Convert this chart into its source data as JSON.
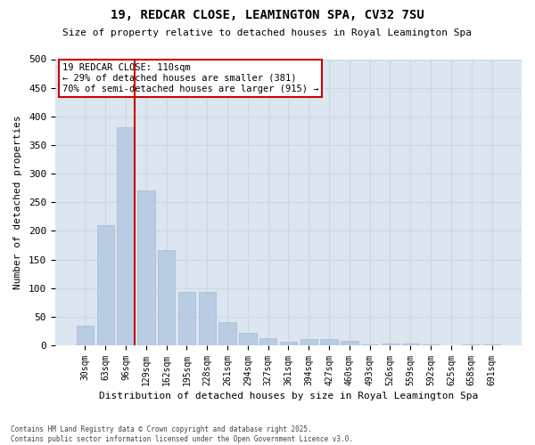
{
  "title": "19, REDCAR CLOSE, LEAMINGTON SPA, CV32 7SU",
  "subtitle": "Size of property relative to detached houses in Royal Leamington Spa",
  "xlabel": "Distribution of detached houses by size in Royal Leamington Spa",
  "ylabel": "Number of detached properties",
  "footer": "Contains HM Land Registry data © Crown copyright and database right 2025.\nContains public sector information licensed under the Open Government Licence v3.0.",
  "categories": [
    "30sqm",
    "63sqm",
    "96sqm",
    "129sqm",
    "162sqm",
    "195sqm",
    "228sqm",
    "261sqm",
    "294sqm",
    "327sqm",
    "361sqm",
    "394sqm",
    "427sqm",
    "460sqm",
    "493sqm",
    "526sqm",
    "559sqm",
    "592sqm",
    "625sqm",
    "658sqm",
    "691sqm"
  ],
  "values": [
    35,
    210,
    381,
    270,
    167,
    93,
    93,
    40,
    22,
    12,
    6,
    11,
    11,
    8,
    1,
    4,
    4,
    1,
    0,
    2,
    2
  ],
  "bar_color": "#b8cce4",
  "bar_edge_color": "#aab8d0",
  "grid_color": "#c8d8e8",
  "background_color": "#dce6f0",
  "property_bin_index": 2,
  "vline_color": "#cc0000",
  "annotation_text": "19 REDCAR CLOSE: 110sqm\n← 29% of detached houses are smaller (381)\n70% of semi-detached houses are larger (915) →",
  "annotation_box_edge_color": "#cc0000",
  "ylim": [
    0,
    500
  ],
  "yticks": [
    0,
    50,
    100,
    150,
    200,
    250,
    300,
    350,
    400,
    450,
    500
  ]
}
